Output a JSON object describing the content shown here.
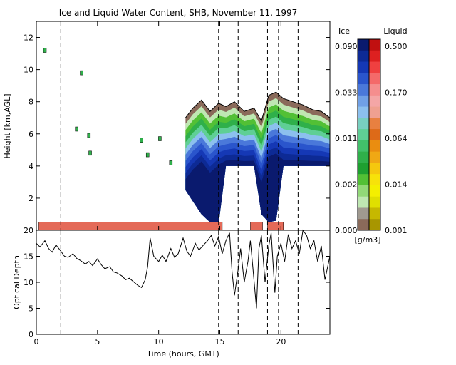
{
  "chart_data": [
    {
      "type": "heatmap",
      "title": "Ice and Liquid Water Content, SHB, November 11, 1997",
      "xlabel": "",
      "ylabel": "Height [km,AGL]",
      "xlim": [
        0,
        24
      ],
      "ylim": [
        0,
        13
      ],
      "x_ticks": [
        "0",
        "5",
        "10",
        "15",
        "20"
      ],
      "y_ticks": [
        "2",
        "4",
        "6",
        "8",
        "10",
        "12"
      ],
      "dashed_lines_x": [
        2.0,
        14.9,
        16.5,
        18.9,
        19.8,
        21.4
      ],
      "colorbar": {
        "ice_label": "Ice",
        "liquid_label": "Liquid",
        "unit": "[g/m3]",
        "ice_ticks": [
          "0.090",
          "0.033",
          "0.011",
          "0.002",
          "0.000"
        ],
        "liquid_ticks": [
          "0.500",
          "0.170",
          "0.064",
          "0.014",
          "0.001"
        ],
        "ice_colors": [
          "#0a1a6e",
          "#0d2a95",
          "#1538b5",
          "#2a55cc",
          "#4a78da",
          "#70a0e6",
          "#8cc0ee",
          "#78cfc0",
          "#5fcf95",
          "#42c06a",
          "#2fb04a",
          "#1ea030",
          "#52c035",
          "#92d878",
          "#bfe7b2",
          "#a09a90",
          "#8a6a5a"
        ],
        "liquid_colors": [
          "#c01010",
          "#dd2020",
          "#ef4040",
          "#f46a6a",
          "#f58e8e",
          "#f4a6a6",
          "#efa090",
          "#e88040",
          "#dd6a18",
          "#ea8d10",
          "#f0a814",
          "#f5c80e",
          "#f7e20a",
          "#f4ef00",
          "#e0df00",
          "#c6b800",
          "#a89600"
        ]
      },
      "ice_region": {
        "time_hours": [
          12.2,
          12.8,
          13.5,
          14.2,
          14.9,
          15.5,
          16.2,
          17.0,
          17.8,
          18.4,
          19.0,
          19.6,
          20.2,
          21.0,
          21.8,
          22.6,
          23.3,
          24.0
        ],
        "cloud_top_km": [
          7.0,
          7.6,
          8.1,
          7.4,
          7.9,
          7.7,
          8.0,
          7.4,
          7.6,
          6.8,
          8.4,
          8.6,
          8.2,
          8.0,
          7.8,
          7.5,
          7.4,
          7.0
        ],
        "cloud_base_km": [
          2.5,
          1.8,
          1.0,
          0.5,
          0.4,
          4.0,
          4.0,
          4.0,
          4.0,
          1.0,
          0.5,
          0.6,
          4.0,
          4.0,
          4.0,
          4.0,
          4.0,
          4.0
        ]
      },
      "scattered_echo_points": {
        "time_hours": [
          0.7,
          3.7,
          4.3,
          8.6,
          10.1,
          3.3,
          4.4,
          9.1,
          11.0
        ],
        "height_km": [
          11.2,
          9.8,
          5.9,
          5.6,
          5.7,
          6.3,
          4.8,
          4.7,
          4.2
        ]
      },
      "liquid_layer": {
        "height_range_km": [
          0.0,
          0.5
        ],
        "time_ranges_hours": [
          [
            0.2,
            15.2
          ],
          [
            17.5,
            18.5
          ],
          [
            18.9,
            20.2
          ]
        ]
      }
    },
    {
      "type": "line",
      "title": "",
      "xlabel": "Time (hours, GMT)",
      "ylabel": "Optical Depth",
      "xlim": [
        0,
        24
      ],
      "ylim": [
        0,
        20
      ],
      "x_ticks": [
        "0",
        "5",
        "10",
        "15",
        "20"
      ],
      "y_ticks": [
        "0",
        "5",
        "10",
        "15",
        "20"
      ],
      "dashed_lines_x": [
        2.0,
        14.9,
        16.5,
        18.9,
        19.8,
        21.4
      ],
      "series": [
        {
          "x": [
            0.0,
            0.3,
            0.7,
            1.0,
            1.3,
            1.6,
            2.0,
            2.3,
            2.6,
            3.0,
            3.3,
            3.6,
            4.0,
            4.3,
            4.6,
            5.0,
            5.3,
            5.6,
            6.0,
            6.3,
            6.6,
            7.0,
            7.3,
            7.6,
            8.0,
            8.3,
            8.6,
            8.9,
            9.1,
            9.3,
            9.6,
            10.0,
            10.3,
            10.6,
            11.0,
            11.3,
            11.6,
            12.0,
            12.3,
            12.6,
            13.0,
            13.3,
            13.6,
            14.0,
            14.3,
            14.6,
            14.9,
            15.2,
            15.5,
            15.8,
            16.0,
            16.2,
            16.5,
            16.7,
            17.0,
            17.3,
            17.5,
            17.7,
            18.0,
            18.2,
            18.4,
            18.7,
            19.0,
            19.2,
            19.5,
            19.7,
            20.0,
            20.3,
            20.6,
            20.9,
            21.2,
            21.5,
            21.8,
            22.1,
            22.4,
            22.7,
            23.0,
            23.3,
            23.6,
            24.0
          ],
          "y": [
            17.5,
            16.8,
            18.0,
            16.5,
            15.8,
            17.2,
            16.0,
            15.0,
            14.8,
            15.5,
            14.6,
            14.2,
            13.5,
            14.0,
            13.2,
            14.5,
            13.4,
            12.6,
            13.0,
            12.0,
            11.8,
            11.2,
            10.5,
            10.8,
            10.0,
            9.4,
            9.0,
            10.5,
            13.0,
            18.5,
            15.0,
            14.0,
            15.2,
            14.0,
            16.5,
            14.8,
            15.5,
            18.5,
            16.0,
            15.0,
            17.5,
            16.2,
            17.0,
            18.0,
            19.0,
            17.0,
            18.8,
            15.5,
            18.0,
            19.5,
            12.0,
            7.5,
            12.5,
            16.5,
            10.0,
            14.0,
            18.0,
            13.0,
            5.0,
            16.5,
            19.0,
            10.0,
            17.0,
            19.5,
            8.0,
            15.0,
            17.5,
            14.0,
            19.2,
            16.5,
            18.0,
            15.5,
            20.0,
            19.0,
            16.5,
            18.0,
            14.0,
            17.0,
            10.5,
            15.0
          ]
        }
      ]
    }
  ]
}
